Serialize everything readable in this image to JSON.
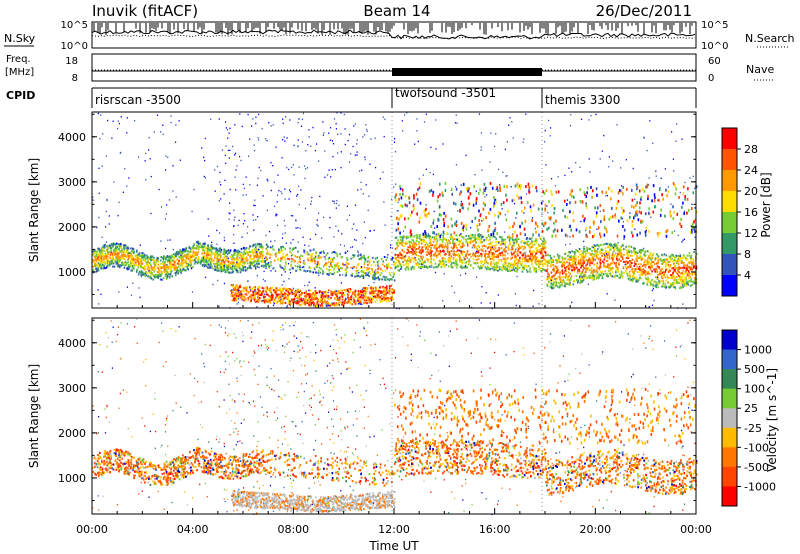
{
  "header": {
    "station": "Inuvik (fitACF)",
    "beam": "Beam 14",
    "date": "26/Dec/2011"
  },
  "side_labels": {
    "nsky": "N.Sky",
    "nsearch": "N.Search",
    "freq_line1": "Freq.",
    "freq_line2": "[MHz]",
    "nave": "Nave",
    "cpid": "CPID"
  },
  "chart_data": [
    {
      "type": "line",
      "panel": "noise",
      "left_axis_ticks": [
        "10^5",
        "10^0"
      ],
      "right_axis_ticks": [
        "10^5",
        "10^0"
      ],
      "series": [
        {
          "name": "N.Sky",
          "style": "solid"
        },
        {
          "name": "N.Search",
          "style": "dotted"
        }
      ]
    },
    {
      "type": "line",
      "panel": "frequency",
      "left_axis_ticks": [
        "18",
        "8"
      ],
      "right_axis_ticks": [
        "60",
        "0"
      ],
      "series": [
        {
          "name": "Freq. [MHz]",
          "style": "solid"
        },
        {
          "name": "Nave",
          "style": "dotted"
        }
      ]
    },
    {
      "type": "table",
      "panel": "cpid",
      "segments": [
        {
          "label": "risrscan -3500",
          "start_hour": 0,
          "end_hour": 12
        },
        {
          "label": "twofsound -3501",
          "start_hour": 12,
          "end_hour": 18
        },
        {
          "label": "themis 3300",
          "start_hour": 18,
          "end_hour": 24
        }
      ]
    },
    {
      "type": "heatmap",
      "panel": "power",
      "ylabel": "Slant Range [km]",
      "y_ticks": [
        1000,
        2000,
        3000,
        4000
      ],
      "ylim": [
        200,
        4550
      ],
      "xlim": [
        0,
        24
      ],
      "colorbar": {
        "label": "Power [dB]",
        "ticks": [
          "28",
          "24",
          "20",
          "16",
          "12",
          "8",
          "4"
        ],
        "colors": [
          "#ff0000",
          "#ff5500",
          "#ff9900",
          "#ffdd00",
          "#77cc33",
          "#339966",
          "#3355bb",
          "#0000ff"
        ]
      }
    },
    {
      "type": "heatmap",
      "panel": "velocity",
      "ylabel": "Slant Range [km]",
      "y_ticks": [
        1000,
        2000,
        3000,
        4000
      ],
      "ylim": [
        200,
        4550
      ],
      "xlim": [
        0,
        24
      ],
      "xlabel": "Time UT",
      "x_ticks": [
        "00:00",
        "04:00",
        "08:00",
        "12:00",
        "16:00",
        "20:00",
        "00:00"
      ],
      "colorbar": {
        "label": "Velocity [m s^-1]",
        "ticks": [
          "1000",
          "500",
          "100",
          "25",
          "-25",
          "-100",
          "-500",
          "-1000"
        ],
        "colors": [
          "#0000cc",
          "#3366cc",
          "#338855",
          "#77cc33",
          "#bbbbbb",
          "#ffbb00",
          "#ff7700",
          "#ff4400",
          "#ff0000"
        ]
      }
    }
  ]
}
